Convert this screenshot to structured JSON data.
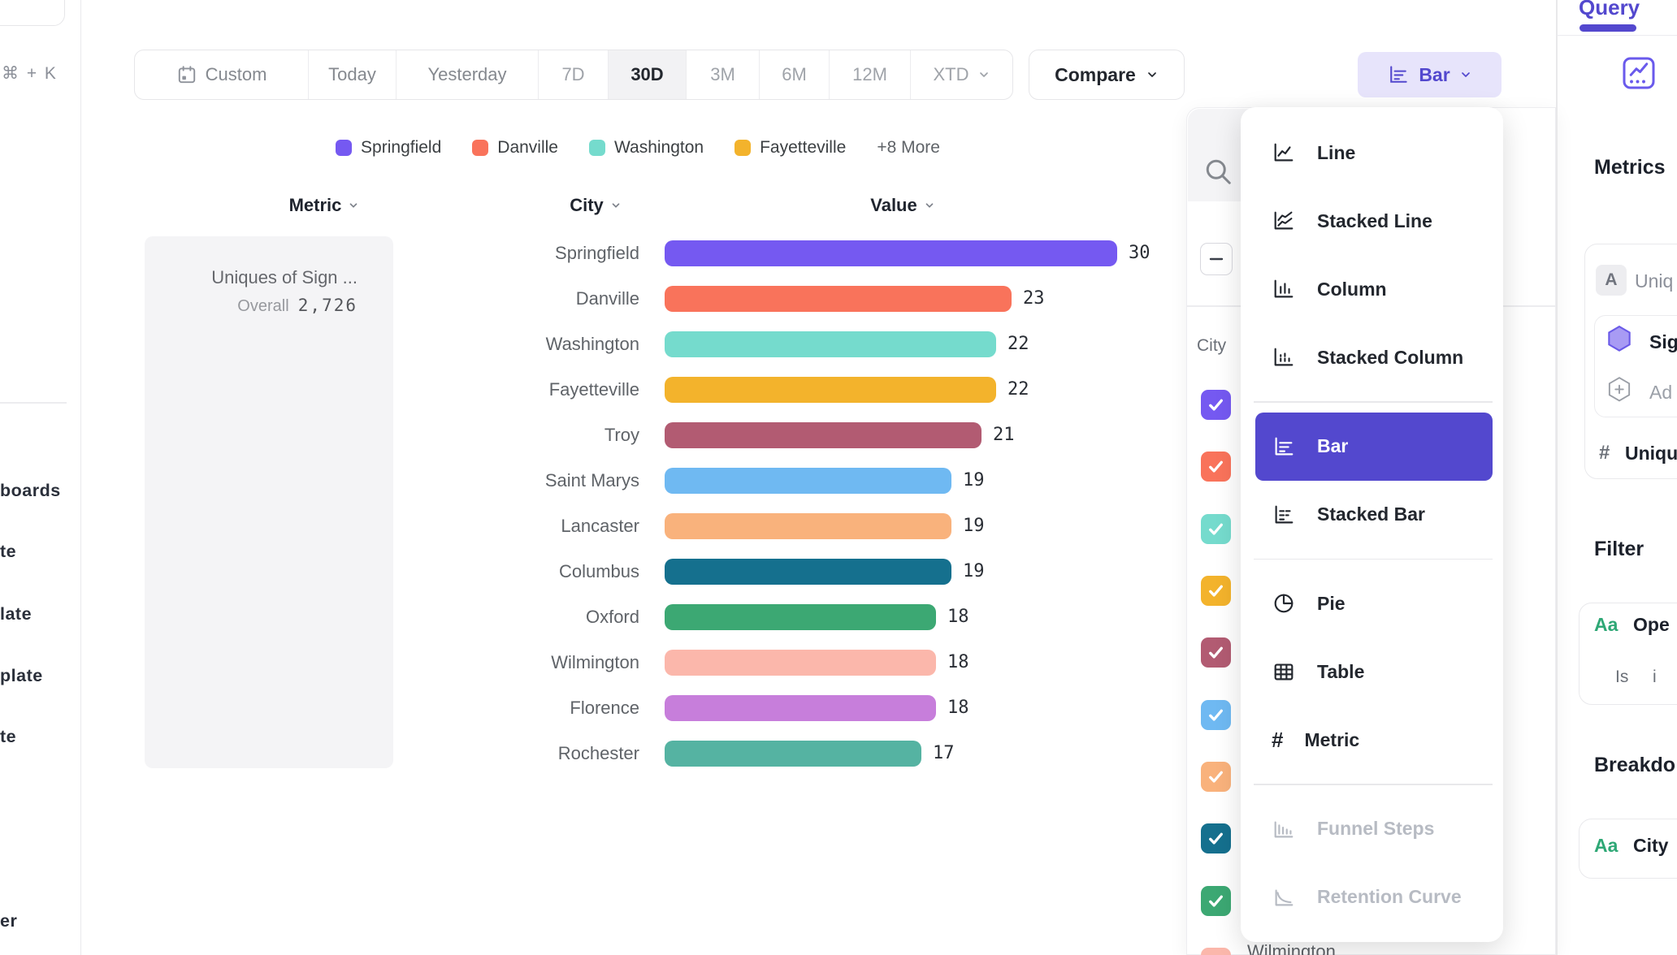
{
  "app": {
    "accent": "#5348CE"
  },
  "left_sidebar": {
    "shortcut": "⌘ + K",
    "items": [
      "boards",
      "te",
      "late",
      "plate",
      "te",
      "er"
    ]
  },
  "toolbar": {
    "date_ranges": [
      {
        "label": "Custom",
        "icon": "calendar"
      },
      {
        "label": "Today"
      },
      {
        "label": "Yesterday"
      },
      {
        "label": "7D",
        "dim": true
      },
      {
        "label": "30D",
        "active": true
      },
      {
        "label": "3M",
        "dim": true
      },
      {
        "label": "6M",
        "dim": true
      },
      {
        "label": "12M",
        "dim": true
      },
      {
        "label": "XTD",
        "dim": true,
        "chevron": true
      }
    ],
    "compare_label": "Compare",
    "chart_type_label": "Bar"
  },
  "legend": {
    "items": [
      {
        "label": "Springfield",
        "color": "#7559F1"
      },
      {
        "label": "Danville",
        "color": "#F9735B"
      },
      {
        "label": "Washington",
        "color": "#75DBCD"
      },
      {
        "label": "Fayetteville",
        "color": "#F3B32C"
      }
    ],
    "more_label": "+8 More"
  },
  "table_headers": {
    "metric": "Metric",
    "city": "City",
    "value": "Value"
  },
  "metric_card": {
    "title": "Uniques of Sign ...",
    "overall_label": "Overall",
    "overall_value": "2,726"
  },
  "chart_data": {
    "type": "bar",
    "orientation": "horizontal",
    "title": "Uniques of Sign ...",
    "overall_value": 2726,
    "categories": [
      "Springfield",
      "Danville",
      "Washington",
      "Fayetteville",
      "Troy",
      "Saint Marys",
      "Lancaster",
      "Columbus",
      "Oxford",
      "Wilmington",
      "Florence",
      "Rochester"
    ],
    "values": [
      30,
      23,
      22,
      22,
      21,
      19,
      19,
      19,
      18,
      18,
      18,
      17
    ],
    "colors": [
      "#7559F1",
      "#F9735B",
      "#75DBCD",
      "#F3B32C",
      "#B25B72",
      "#6FB9F2",
      "#F9B27C",
      "#15708E",
      "#3CA873",
      "#FBB7AB",
      "#C77EDB",
      "#55B3A2"
    ],
    "xlim": [
      0,
      30
    ],
    "xlabel": "Value",
    "ylabel": "City"
  },
  "breakdown_panel": {
    "column_header": "City",
    "select_all_state": "indeterminate",
    "checkbox_colors": [
      "#7559F1",
      "#F9735B",
      "#75DBCD",
      "#F3B32C",
      "#B25B72",
      "#6FB9F2",
      "#F9B27C",
      "#15708E",
      "#3CA873",
      "#FBB7AB"
    ],
    "partial_row_label": "Wilmington"
  },
  "chart_type_menu": {
    "selected": "Bar",
    "groups": [
      [
        {
          "label": "Line",
          "icon": "line"
        },
        {
          "label": "Stacked Line",
          "icon": "stacked-line"
        },
        {
          "label": "Column",
          "icon": "column"
        },
        {
          "label": "Stacked Column",
          "icon": "stacked-column"
        }
      ],
      [
        {
          "label": "Bar",
          "icon": "bar",
          "selected": true
        },
        {
          "label": "Stacked Bar",
          "icon": "stacked-bar"
        }
      ],
      [
        {
          "label": "Pie",
          "icon": "pie"
        },
        {
          "label": "Table",
          "icon": "table"
        },
        {
          "label": "Metric",
          "icon": "hash"
        }
      ],
      [
        {
          "label": "Funnel Steps",
          "icon": "funnel",
          "disabled": true
        },
        {
          "label": "Retention Curve",
          "icon": "retention",
          "disabled": true
        }
      ]
    ]
  },
  "right_sidebar": {
    "tab_label": "Query",
    "metrics_heading": "Metrics",
    "event_chip": "A",
    "event_label": "Uniq",
    "signal_label": "Sig",
    "add_label": "Ad",
    "hash_symbol": "#",
    "measure_label": "Uniqu",
    "filter_heading": "Filter",
    "filter_chip": "Aa",
    "filter_label": "Ope",
    "filter_operator": "Is",
    "filter_value": "i",
    "breakdown_heading": "Breakdo",
    "breakdown_chip": "Aa",
    "breakdown_label": "City"
  }
}
